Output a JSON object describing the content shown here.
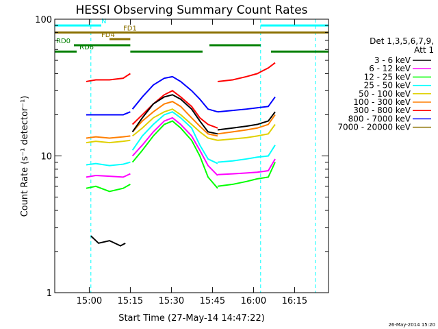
{
  "chart_data": {
    "type": "line",
    "title": "HESSI Observing Summary Count Rates",
    "xlabel": "Start Time (27-May-14 14:47:22)",
    "ylabel": "Count Rate (s⁻¹ detector⁻¹)",
    "y_scale": "log",
    "ylim": [
      1,
      100
    ],
    "x_unit": "minutes from 14:47:22",
    "xlim": [
      0,
      100
    ],
    "x_tick_labels": [
      "15:00",
      "15:15",
      "15:30",
      "15:45",
      "16:00",
      "16:15"
    ],
    "x_tick_values": [
      12.6,
      27.6,
      42.6,
      57.6,
      72.6,
      87.6
    ],
    "y_tick_labels": [
      "1",
      "10",
      "100"
    ],
    "y_tick_values": [
      1,
      10,
      100
    ],
    "legend_title": "Det 1,3,5,6,7,9,",
    "legend_subtitle": "Att 1",
    "legend_position": "right",
    "series": [
      {
        "name": "3 - 6 keV",
        "color": "#000000",
        "segments": [
          {
            "x": [
              13.2,
              16,
              20,
              24,
              25.8
            ],
            "y": [
              2.6,
              2.3,
              2.4,
              2.2,
              2.3
            ]
          },
          {
            "x": [
              28.4,
              32,
              36,
              40,
              43,
              46,
              50,
              53,
              56,
              59.5
            ],
            "y": [
              15,
              19,
              24,
              27,
              28,
              26,
              22,
              18,
              15,
              14.5
            ]
          },
          {
            "x": [
              59.5,
              65,
              70,
              74,
              78,
              80.5
            ],
            "y": [
              15.5,
              16,
              16.5,
              17,
              18,
              21
            ]
          }
        ]
      },
      {
        "name": "6 - 12 keV",
        "color": "#ff00ff",
        "segments": [
          {
            "x": [
              11.5,
              15,
              20,
              25,
              27.6
            ],
            "y": [
              7,
              7.2,
              7.1,
              7,
              7.4
            ]
          },
          {
            "x": [
              28.4,
              32,
              36,
              40,
              43,
              46,
              50,
              53,
              56,
              59.5
            ],
            "y": [
              10,
              12,
              15,
              18,
              19,
              17,
              14,
              11,
              8.5,
              7.2
            ]
          },
          {
            "x": [
              59.5,
              65,
              70,
              74,
              78,
              80.5
            ],
            "y": [
              7.3,
              7.4,
              7.5,
              7.6,
              7.8,
              9.5
            ]
          }
        ]
      },
      {
        "name": "12 - 25 keV",
        "color": "#00ff00",
        "segments": [
          {
            "x": [
              11.5,
              15,
              20,
              25,
              27.6
            ],
            "y": [
              5.8,
              6,
              5.5,
              5.8,
              6.2
            ]
          },
          {
            "x": [
              28.4,
              32,
              36,
              40,
              43,
              46,
              50,
              53,
              56,
              59.5
            ],
            "y": [
              9,
              11,
              14,
              17,
              18,
              16,
              13,
              10,
              7,
              5.8
            ]
          },
          {
            "x": [
              59.5,
              65,
              70,
              74,
              78,
              80.5
            ],
            "y": [
              6,
              6.2,
              6.5,
              6.8,
              7,
              9
            ]
          }
        ]
      },
      {
        "name": "25 - 50 keV",
        "color": "#00ffff",
        "segments": [
          {
            "x": [
              11.5,
              15,
              20,
              25,
              27.6
            ],
            "y": [
              8.6,
              8.8,
              8.5,
              8.7,
              9
            ]
          },
          {
            "x": [
              28.4,
              32,
              36,
              40,
              43,
              46,
              50,
              53,
              56,
              59.5
            ],
            "y": [
              11,
              14,
              17,
              20,
              21,
              19,
              16,
              12,
              9.5,
              8.8
            ]
          },
          {
            "x": [
              59.5,
              65,
              70,
              74,
              78,
              80.5
            ],
            "y": [
              9,
              9.2,
              9.5,
              9.8,
              10,
              12
            ]
          }
        ]
      },
      {
        "name": "50 - 100 keV",
        "color": "#e0d000",
        "segments": [
          {
            "x": [
              11.5,
              15,
              20,
              25,
              27.6
            ],
            "y": [
              12.5,
              12.8,
              12.5,
              12.8,
              13
            ]
          },
          {
            "x": [
              28.4,
              32,
              36,
              40,
              43,
              46,
              50,
              53,
              56,
              59.5
            ],
            "y": [
              14,
              16,
              19,
              21,
              22,
              20,
              17,
              15,
              13.5,
              13
            ]
          },
          {
            "x": [
              59.5,
              65,
              70,
              74,
              78,
              80.5
            ],
            "y": [
              13,
              13.3,
              13.6,
              14,
              14.5,
              17
            ]
          }
        ]
      },
      {
        "name": "100 - 300 keV",
        "color": "#ff7f00",
        "segments": [
          {
            "x": [
              11.5,
              15,
              20,
              25,
              27.6
            ],
            "y": [
              13.5,
              13.8,
              13.5,
              13.8,
              14
            ]
          },
          {
            "x": [
              28.4,
              32,
              36,
              40,
              43,
              46,
              50,
              53,
              56,
              59.5
            ],
            "y": [
              15,
              18,
              21,
              24,
              25,
              23,
              19,
              16.5,
              14.5,
              14
            ]
          },
          {
            "x": [
              59.5,
              65,
              70,
              74,
              78,
              80.5
            ],
            "y": [
              14.5,
              15,
              15.5,
              16,
              17,
              20
            ]
          }
        ]
      },
      {
        "name": "300 - 800 keV",
        "color": "#ff0000",
        "segments": [
          {
            "x": [
              11.5,
              15,
              20,
              25,
              27.6
            ],
            "y": [
              35,
              36,
              36,
              37,
              40
            ]
          },
          {
            "x": [
              28.4,
              32,
              36,
              40,
              43,
              46,
              50,
              53,
              56,
              59.5
            ],
            "y": [
              17,
              20,
              24,
              28,
              30,
              27,
              23,
              19,
              17,
              16
            ]
          },
          {
            "x": [
              59.5,
              65,
              70,
              74,
              78,
              80.5
            ],
            "y": [
              35,
              36,
              38,
              40,
              44,
              48
            ]
          }
        ]
      },
      {
        "name": "800 - 7000 keV",
        "color": "#0000ff",
        "segments": [
          {
            "x": [
              11.5,
              15,
              20,
              25,
              27.6
            ],
            "y": [
              20,
              20,
              20,
              20,
              21
            ]
          },
          {
            "x": [
              28.4,
              32,
              36,
              40,
              43,
              46,
              50,
              53,
              56,
              59.5
            ],
            "y": [
              22,
              27,
              33,
              37,
              38,
              35,
              30,
              26,
              22,
              21
            ]
          },
          {
            "x": [
              59.5,
              65,
              70,
              74,
              78,
              80.5
            ],
            "y": [
              21,
              21.5,
              22,
              22.5,
              23,
              27
            ]
          }
        ]
      },
      {
        "name": "7000 - 20000 keV",
        "color": "#8b7000",
        "segments": []
      }
    ],
    "annotations": [
      {
        "label": "N",
        "color": "#00ffff",
        "y": 90,
        "segments": [
          [
            0,
            17
          ],
          [
            75.2,
            100
          ]
        ],
        "label_x": 17
      },
      {
        "label": "FD1",
        "color": "#8b7000",
        "y": 80,
        "segments": [
          [
            0,
            100
          ]
        ],
        "label_x": 25
      },
      {
        "label": "FD4",
        "color": "#8b7000",
        "y": 71.5,
        "segments": [
          [
            20,
            27.6
          ]
        ],
        "label_x": 17
      },
      {
        "label": "RD0",
        "color": "#008000",
        "y": 64.5,
        "segments": [
          [
            7,
            27.6
          ],
          [
            56.5,
            75.2
          ]
        ],
        "label_x": 0.5
      },
      {
        "label": "RD6",
        "color": "#008000",
        "y": 58,
        "segments": [
          [
            0,
            8
          ],
          [
            27.6,
            54
          ],
          [
            79,
            100
          ]
        ],
        "label_x": 9
      }
    ],
    "event_lines": [
      {
        "x": 13.2,
        "color": "#00ffff"
      },
      {
        "x": 75.2,
        "color": "#00ffff"
      },
      {
        "x": 95.2,
        "color": "#00ffff"
      }
    ]
  },
  "footer_timestamp": "26-May-2014 15:20"
}
